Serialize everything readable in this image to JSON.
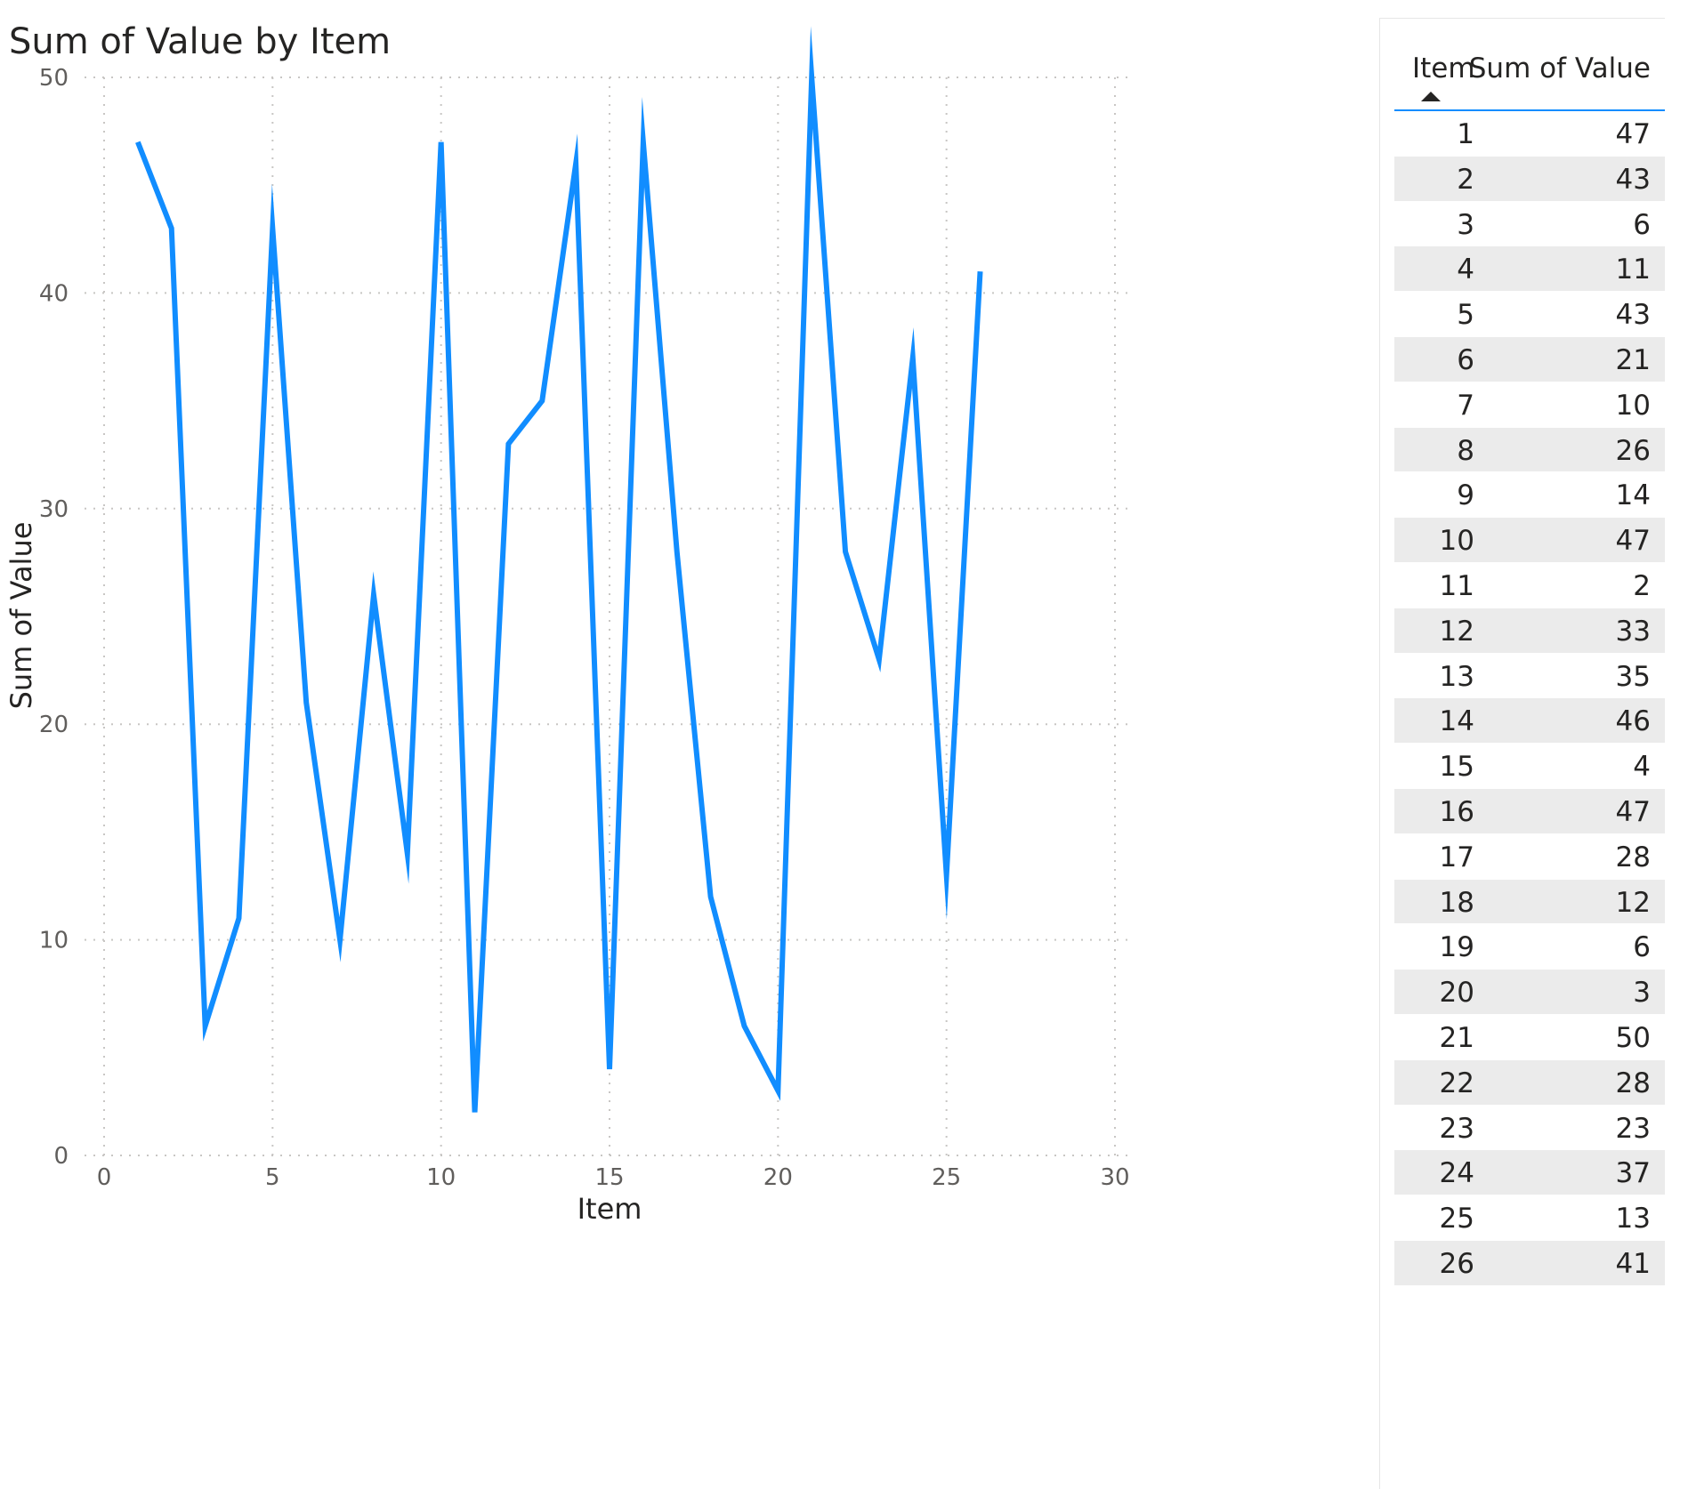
{
  "chart_data": {
    "type": "line",
    "title": "Sum of Value by Item",
    "xlabel": "Item",
    "ylabel": "Sum of Value",
    "xlim": [
      0,
      30
    ],
    "ylim": [
      0,
      50
    ],
    "x_ticks": [
      0,
      5,
      10,
      15,
      20,
      25,
      30
    ],
    "y_ticks": [
      0,
      10,
      20,
      30,
      40,
      50
    ],
    "grid": true,
    "color": "#118dff",
    "x": [
      1,
      2,
      3,
      4,
      5,
      6,
      7,
      8,
      9,
      10,
      11,
      12,
      13,
      14,
      15,
      16,
      17,
      18,
      19,
      20,
      21,
      22,
      23,
      24,
      25,
      26
    ],
    "series": [
      {
        "values": [
          47,
          43,
          6,
          11,
          43,
          21,
          10,
          26,
          14,
          47,
          2,
          33,
          35,
          46,
          4,
          47,
          28,
          12,
          6,
          3,
          50,
          28,
          23,
          37,
          13,
          41
        ]
      }
    ]
  },
  "table": {
    "headers": {
      "item": "Item",
      "value": "Sum of Value"
    },
    "sort_icon": "sort-ascending-icon",
    "rows": [
      {
        "item": "1",
        "value": "47"
      },
      {
        "item": "2",
        "value": "43"
      },
      {
        "item": "3",
        "value": "6"
      },
      {
        "item": "4",
        "value": "11"
      },
      {
        "item": "5",
        "value": "43"
      },
      {
        "item": "6",
        "value": "21"
      },
      {
        "item": "7",
        "value": "10"
      },
      {
        "item": "8",
        "value": "26"
      },
      {
        "item": "9",
        "value": "14"
      },
      {
        "item": "10",
        "value": "47"
      },
      {
        "item": "11",
        "value": "2"
      },
      {
        "item": "12",
        "value": "33"
      },
      {
        "item": "13",
        "value": "35"
      },
      {
        "item": "14",
        "value": "46"
      },
      {
        "item": "15",
        "value": "4"
      },
      {
        "item": "16",
        "value": "47"
      },
      {
        "item": "17",
        "value": "28"
      },
      {
        "item": "18",
        "value": "12"
      },
      {
        "item": "19",
        "value": "6"
      },
      {
        "item": "20",
        "value": "3"
      },
      {
        "item": "21",
        "value": "50"
      },
      {
        "item": "22",
        "value": "28"
      },
      {
        "item": "23",
        "value": "23"
      },
      {
        "item": "24",
        "value": "37"
      },
      {
        "item": "25",
        "value": "13"
      },
      {
        "item": "26",
        "value": "41"
      }
    ]
  }
}
